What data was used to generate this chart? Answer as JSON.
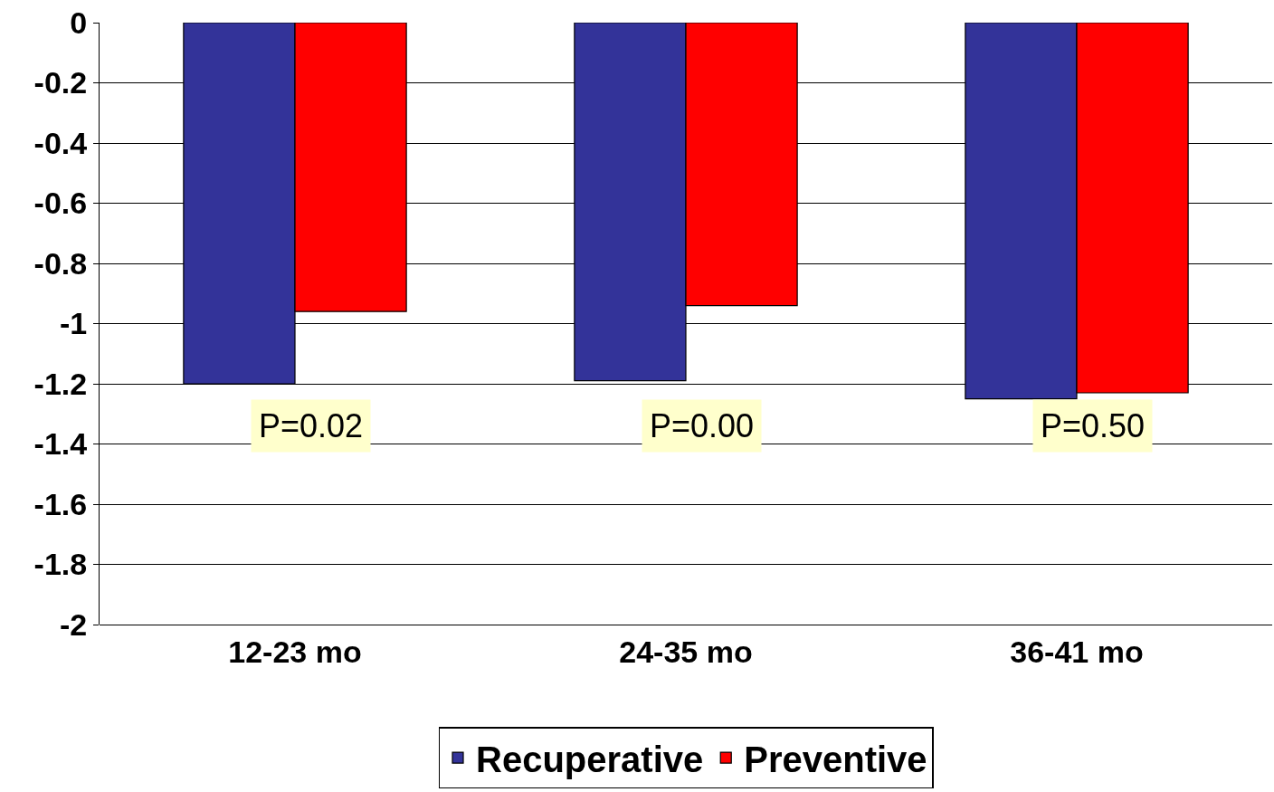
{
  "chart_data": {
    "type": "bar",
    "categories": [
      "12-23 mo",
      "24-35 mo",
      "36-41 mo"
    ],
    "series": [
      {
        "name": "Recuperative",
        "color": "#333399",
        "values": [
          -1.2,
          -1.19,
          -1.25
        ]
      },
      {
        "name": "Preventive",
        "color": "#ff0000",
        "values": [
          -0.96,
          -0.94,
          -1.23
        ]
      }
    ],
    "ylim": [
      -2,
      0
    ],
    "yticks": [
      0,
      -0.2,
      -0.4,
      -0.6,
      -0.8,
      -1,
      -1.2,
      -1.4,
      -1.6,
      -1.8,
      -2
    ],
    "grid": "y",
    "legend": "bottom",
    "annotations": [
      "P=0.02",
      "P=0.00",
      "P=0.50"
    ]
  }
}
